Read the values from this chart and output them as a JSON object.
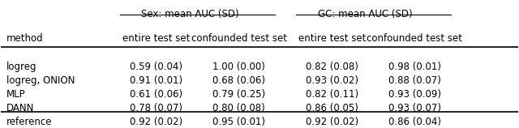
{
  "title_sex": "Sex: mean AUC (SD)",
  "title_gc": "GC: mean AUC (SD)",
  "col_header_method": "method",
  "col_header_entire": "entire test set",
  "col_header_confounded": "confounded test set",
  "methods": [
    "logreg",
    "logreg, ONION",
    "MLP",
    "DANN",
    "reference"
  ],
  "sex_entire": [
    "0.59 (0.04)",
    "0.91 (0.01)",
    "0.61 (0.06)",
    "0.78 (0.07)",
    "0.92 (0.02)"
  ],
  "sex_confounded": [
    "1.00 (0.00)",
    "0.68 (0.06)",
    "0.79 (0.25)",
    "0.80 (0.08)",
    "0.95 (0.01)"
  ],
  "gc_entire": [
    "0.82 (0.08)",
    "0.93 (0.02)",
    "0.82 (0.11)",
    "0.86 (0.05)",
    "0.92 (0.02)"
  ],
  "gc_confounded": [
    "0.98 (0.01)",
    "0.88 (0.07)",
    "0.93 (0.09)",
    "0.93 (0.07)",
    "0.86 (0.04)"
  ],
  "bg_color": "#f0f0f0",
  "font_size": 8.5,
  "header_font_size": 8.5
}
